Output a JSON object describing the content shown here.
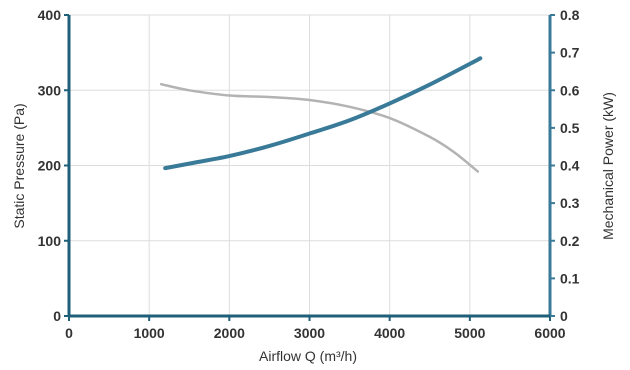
{
  "chart_data": {
    "type": "line",
    "xlabel": "Airflow Q (m³/h)",
    "ylabel": "Static Pressure (Pa)",
    "y2label": "Mechanical Power (kW)",
    "xlim": [
      0,
      6000
    ],
    "ylim": [
      0,
      400
    ],
    "y2lim": [
      0,
      0.8
    ],
    "x_ticks": [
      "0",
      "1000",
      "2000",
      "3000",
      "4000",
      "5000",
      "6000"
    ],
    "y_ticks": [
      "0",
      "100",
      "200",
      "300",
      "400"
    ],
    "y2_ticks": [
      "0",
      "0.1",
      "0.2",
      "0.3",
      "0.4",
      "0.5",
      "0.6",
      "0.7",
      "0.8"
    ],
    "grid": true,
    "legend": "none",
    "series": [
      {
        "axis": "left",
        "color": "#b3b3b3",
        "x": [
          1150,
          1500,
          2000,
          2500,
          3000,
          3500,
          4000,
          4500,
          4800,
          5100
        ],
        "y": [
          308,
          300,
          293,
          291,
          287,
          278,
          263,
          238,
          218,
          192
        ]
      },
      {
        "axis": "right",
        "color": "#3a7a99",
        "x": [
          1200,
          1500,
          2000,
          2500,
          3000,
          3500,
          4000,
          4500,
          5000,
          5130
        ],
        "y": [
          0.393,
          0.405,
          0.425,
          0.452,
          0.485,
          0.52,
          0.565,
          0.615,
          0.67,
          0.685
        ]
      }
    ],
    "colors": {
      "left_axis": "#1f5f7a",
      "right_axis": "#3a7a99",
      "grid": "#dddddd",
      "text": "#333333"
    }
  }
}
